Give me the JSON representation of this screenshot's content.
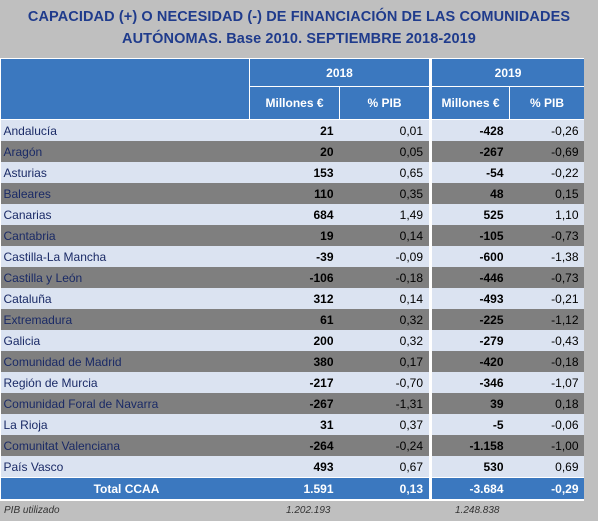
{
  "title_line1": "CAPACIDAD (+) O NECESIDAD (-) DE FINANCIACIÓN DE LAS COMUNIDADES",
  "title_line2": "AUTÓNOMAS. Base 2010. SEPTIEMBRE  2018-2019",
  "years": [
    "2018",
    "2019"
  ],
  "subheaders": [
    "Millones €",
    "% PIB",
    "Millones €",
    "% PIB"
  ],
  "rows": [
    {
      "name": "Andalucía",
      "m2018": "21",
      "p2018": "0,01",
      "m2019": "-428",
      "p2019": "-0,26"
    },
    {
      "name": "Aragón",
      "m2018": "20",
      "p2018": "0,05",
      "m2019": "-267",
      "p2019": "-0,69"
    },
    {
      "name": "Asturias",
      "m2018": "153",
      "p2018": "0,65",
      "m2019": "-54",
      "p2019": "-0,22"
    },
    {
      "name": "Baleares",
      "m2018": "110",
      "p2018": "0,35",
      "m2019": "48",
      "p2019": "0,15"
    },
    {
      "name": "Canarias",
      "m2018": "684",
      "p2018": "1,49",
      "m2019": "525",
      "p2019": "1,10"
    },
    {
      "name": "Cantabria",
      "m2018": "19",
      "p2018": "0,14",
      "m2019": "-105",
      "p2019": "-0,73"
    },
    {
      "name": "Castilla-La Mancha",
      "m2018": "-39",
      "p2018": "-0,09",
      "m2019": "-600",
      "p2019": "-1,38"
    },
    {
      "name": "Castilla y León",
      "m2018": "-106",
      "p2018": "-0,18",
      "m2019": "-446",
      "p2019": "-0,73"
    },
    {
      "name": "Cataluña",
      "m2018": "312",
      "p2018": "0,14",
      "m2019": "-493",
      "p2019": "-0,21"
    },
    {
      "name": "Extremadura",
      "m2018": "61",
      "p2018": "0,32",
      "m2019": "-225",
      "p2019": "-1,12"
    },
    {
      "name": "Galicia",
      "m2018": "200",
      "p2018": "0,32",
      "m2019": "-279",
      "p2019": "-0,43"
    },
    {
      "name": "Comunidad de Madrid",
      "m2018": "380",
      "p2018": "0,17",
      "m2019": "-420",
      "p2019": "-0,18"
    },
    {
      "name": "Región de Murcia",
      "m2018": "-217",
      "p2018": "-0,70",
      "m2019": "-346",
      "p2019": "-1,07"
    },
    {
      "name": "Comunidad Foral de Navarra",
      "m2018": "-267",
      "p2018": "-1,31",
      "m2019": "39",
      "p2019": "0,18"
    },
    {
      "name": "La Rioja",
      "m2018": "31",
      "p2018": "0,37",
      "m2019": "-5",
      "p2019": "-0,06"
    },
    {
      "name": "Comunitat Valenciana",
      "m2018": "-264",
      "p2018": "-0,24",
      "m2019": "-1.158",
      "p2019": "-1,00"
    },
    {
      "name": "País Vasco",
      "m2018": "493",
      "p2018": "0,67",
      "m2019": "530",
      "p2019": "0,69"
    }
  ],
  "total": {
    "name": "Total CCAA",
    "m2018": "1.591",
    "p2018": "0,13",
    "m2019": "-3.684",
    "p2019": "-0,29"
  },
  "footer": {
    "label": "PIB utilizado",
    "v2018": "1.202.193",
    "v2019": "1.248.838"
  }
}
